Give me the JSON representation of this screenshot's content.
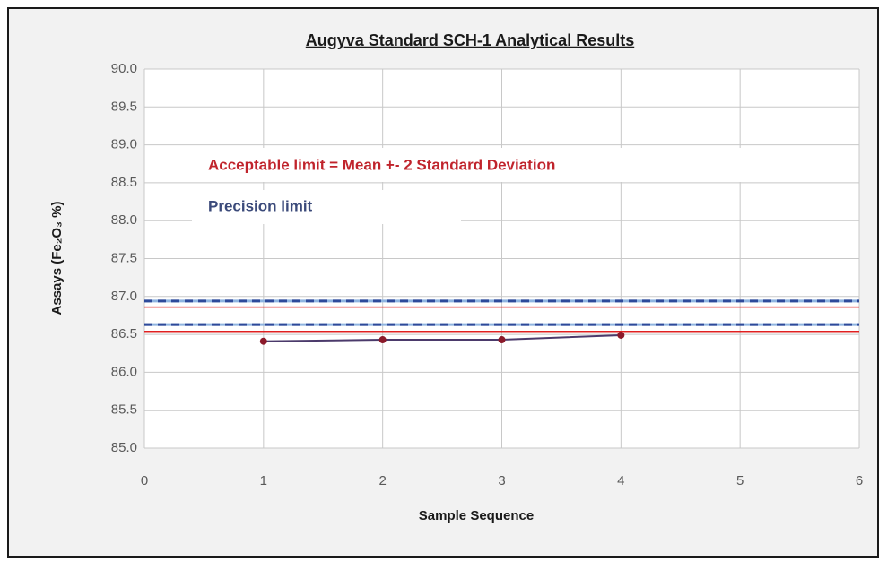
{
  "chart_data": {
    "type": "line",
    "title": "Augyva Standard  SCH-1  Analytical Results",
    "x_label": "Sample Sequence",
    "y_label": "Assays (Fe₂O₃ %)",
    "annotations": [
      "Acceptable limit = Mean +- 2 Standard Deviation",
      "Precision limit"
    ],
    "x": [
      1,
      2,
      3,
      4
    ],
    "series": [
      {
        "color": "#4b3a6b",
        "marker_color": "#8b1a2a",
        "values": [
          86.41,
          86.43,
          86.43,
          86.49
        ]
      }
    ],
    "reference_lines": [
      {
        "value": 86.94,
        "color": "#2e4a9a",
        "dash_color": "#8fb4e0",
        "style": "dashed"
      },
      {
        "value": 86.86,
        "color": "#e02020",
        "style": "solid"
      },
      {
        "value": 86.63,
        "color": "#2e4a9a",
        "dash_color": "#8fb4e0",
        "style": "dashed"
      },
      {
        "value": 86.54,
        "color": "#e02020",
        "style": "solid"
      }
    ],
    "xlim": [
      0,
      6
    ],
    "xticks": [
      0,
      1,
      2,
      3,
      4,
      5,
      6
    ],
    "ylim": [
      85,
      90
    ],
    "yticks": [
      {
        "value": 85,
        "label": "85.0"
      },
      85.5,
      {
        "value": 86,
        "label": "86.0"
      },
      86.5,
      {
        "value": 87,
        "label": "87.0"
      },
      87.5,
      {
        "value": 88,
        "label": "88.0"
      },
      88.5,
      {
        "value": 89,
        "label": "89.0"
      },
      89.5,
      {
        "value": 90,
        "label": "90.0"
      }
    ],
    "grid": true,
    "grid_color": "#c8c8c8"
  }
}
